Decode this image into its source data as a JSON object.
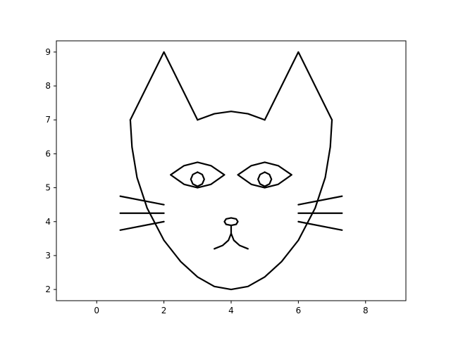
{
  "chart_data": {
    "type": "line",
    "title": "",
    "xlabel": "",
    "ylabel": "",
    "xlim": [
      -1.2,
      9.2
    ],
    "ylim": [
      1.67,
      9.33
    ],
    "x_ticks": [
      0,
      2,
      4,
      6,
      8
    ],
    "y_ticks": [
      2,
      3,
      4,
      5,
      6,
      7,
      8,
      9
    ],
    "x_tick_labels": [
      "0",
      "2",
      "4",
      "6",
      "8"
    ],
    "y_tick_labels": [
      "2",
      "3",
      "4",
      "5",
      "6",
      "7",
      "8",
      "9"
    ],
    "grid": false,
    "legend": "none",
    "line_color": "#000000",
    "series": [
      {
        "x": [
          1,
          2,
          3
        ],
        "y": [
          7,
          9,
          7
        ]
      },
      {
        "x": [
          5,
          6,
          7
        ],
        "y": [
          7,
          9,
          7
        ]
      },
      {
        "x": [
          3,
          3.5,
          4,
          4.5,
          5
        ],
        "y": [
          7,
          7.18,
          7.25,
          7.18,
          7
        ]
      },
      {
        "x": [
          1,
          1.05,
          1.2,
          1.5,
          2,
          2.5,
          3,
          3.5,
          4,
          4.5,
          5,
          5.5,
          6,
          6.5,
          6.8,
          6.95,
          7
        ],
        "y": [
          7,
          6.2,
          5.3,
          4.4,
          3.45,
          2.82,
          2.37,
          2.09,
          2,
          2.09,
          2.37,
          2.82,
          3.45,
          4.4,
          5.3,
          6.2,
          7
        ]
      },
      {
        "x": [
          2.2,
          2.6,
          3,
          3.4,
          3.8,
          3.4,
          3,
          2.6,
          2.2
        ],
        "y": [
          5.38,
          5.65,
          5.75,
          5.65,
          5.38,
          5.1,
          5,
          5.1,
          5.38
        ]
      },
      {
        "x": [
          4.2,
          4.6,
          5,
          5.4,
          5.8,
          5.4,
          5,
          4.6,
          4.2
        ],
        "y": [
          5.38,
          5.65,
          5.75,
          5.65,
          5.38,
          5.1,
          5,
          5.1,
          5.38
        ]
      },
      {
        "x": [
          3,
          3.14,
          3.2,
          3.14,
          3,
          2.86,
          2.8,
          2.86,
          3
        ],
        "y": [
          5.46,
          5.39,
          5.25,
          5.11,
          5.04,
          5.11,
          5.25,
          5.39,
          5.46
        ]
      },
      {
        "x": [
          5,
          5.14,
          5.2,
          5.14,
          5,
          4.86,
          4.8,
          4.86,
          5
        ],
        "y": [
          5.46,
          5.39,
          5.25,
          5.11,
          5.04,
          5.11,
          5.25,
          5.39,
          5.46
        ]
      },
      {
        "x": [
          4,
          4.15,
          4.2,
          4.15,
          4,
          3.85,
          3.8,
          3.85,
          4
        ],
        "y": [
          4.11,
          4.08,
          4.0,
          3.92,
          3.89,
          3.92,
          4.0,
          4.08,
          4.11
        ]
      },
      {
        "x": [
          4,
          4
        ],
        "y": [
          3.89,
          3.65
        ]
      },
      {
        "x": [
          3.5,
          3.75,
          3.92,
          4
        ],
        "y": [
          3.2,
          3.3,
          3.45,
          3.65
        ]
      },
      {
        "x": [
          4,
          4.08,
          4.25,
          4.5
        ],
        "y": [
          3.65,
          3.45,
          3.3,
          3.2
        ]
      },
      {
        "x": [
          0.7,
          2
        ],
        "y": [
          4.75,
          4.5
        ]
      },
      {
        "x": [
          0.7,
          2
        ],
        "y": [
          4.25,
          4.25
        ]
      },
      {
        "x": [
          0.7,
          2
        ],
        "y": [
          3.75,
          4.0
        ]
      },
      {
        "x": [
          6,
          7.3
        ],
        "y": [
          4.5,
          4.75
        ]
      },
      {
        "x": [
          6,
          7.3
        ],
        "y": [
          4.25,
          4.25
        ]
      },
      {
        "x": [
          6,
          7.3
        ],
        "y": [
          4.0,
          3.75
        ]
      }
    ]
  }
}
